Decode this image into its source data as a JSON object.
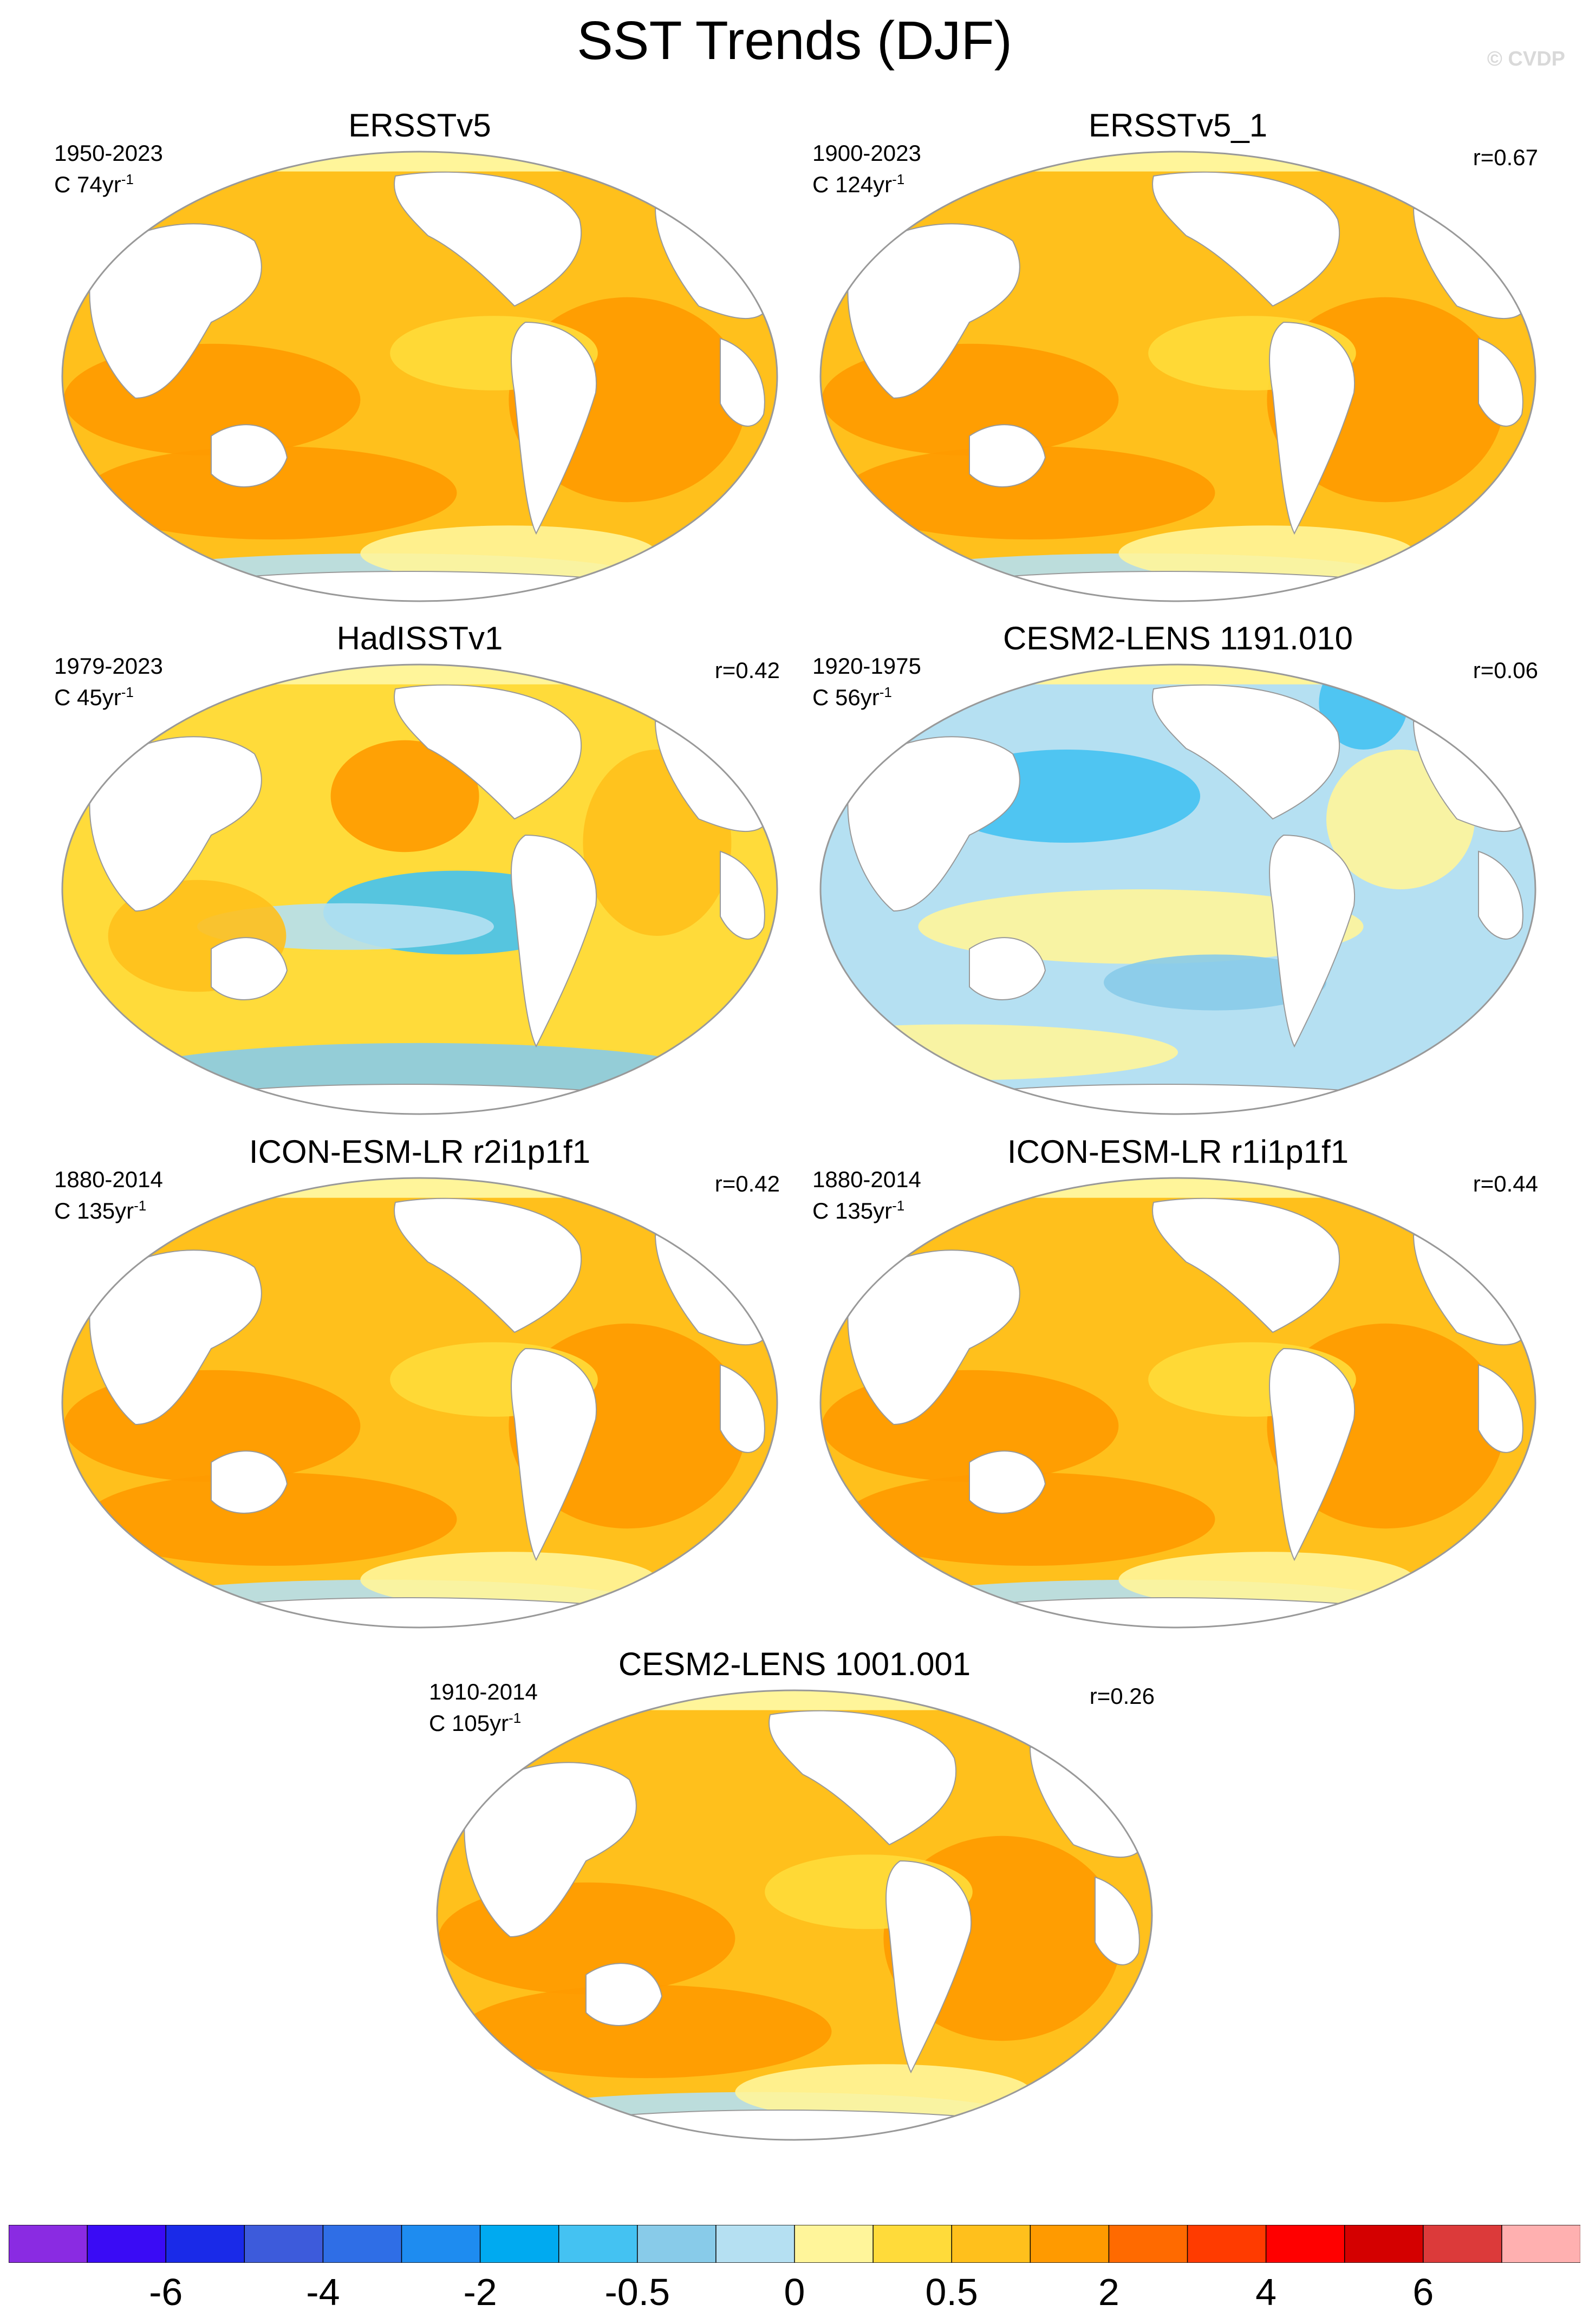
{
  "title": "SST Trends (DJF)",
  "credit": "© CVDP",
  "colors": {
    "levels": [
      "#8a2be2",
      "#3a0bf5",
      "#1a2ae8",
      "#3d5bdb",
      "#2f6ee6",
      "#1e8cf0",
      "#00aaf0",
      "#44c2f2",
      "#88cbe9",
      "#b5e0f2",
      "#fff59a",
      "#ffdb3a",
      "#ffc01c",
      "#ff9a00",
      "#ff6a00",
      "#ff3b00",
      "#ff0000",
      "#d40000",
      "#dc3a3a",
      "#ffb0b0"
    ],
    "land": "#ffffff",
    "outline": "#999999"
  },
  "chart_data": {
    "type": "heatmap",
    "title": "SST Trends (DJF)",
    "colorbar": {
      "tick_labels": [
        "-6",
        "-4",
        "-2",
        "-0.5",
        "0",
        "0.5",
        "2",
        "4",
        "6"
      ],
      "bin_count": 20
    },
    "panels": [
      {
        "title": "ERSSTv5",
        "years": "1950-2023",
        "units": "C 74yr",
        "corr": "",
        "scheme": "warm"
      },
      {
        "title": "ERSSTv5_1",
        "years": "1900-2023",
        "units": "C 124yr",
        "corr": "r=0.67",
        "scheme": "warm"
      },
      {
        "title": "HadISSTv1",
        "years": "1979-2023",
        "units": "C 45yr",
        "corr": "r=0.42",
        "scheme": "mixed"
      },
      {
        "title": "CESM2-LENS 1191.010",
        "years": "1920-1975",
        "units": "C 56yr",
        "corr": "r=0.06",
        "scheme": "cool"
      },
      {
        "title": "ICON-ESM-LR r2i1p1f1",
        "years": "1880-2014",
        "units": "C 135yr",
        "corr": "r=0.42",
        "scheme": "warm"
      },
      {
        "title": "ICON-ESM-LR r1i1p1f1",
        "years": "1880-2014",
        "units": "C 135yr",
        "corr": "r=0.44",
        "scheme": "warm"
      },
      {
        "title": "CESM2-LENS 1001.001",
        "years": "1910-2014",
        "units": "C 105yr",
        "corr": "r=0.26",
        "scheme": "warm"
      }
    ]
  }
}
